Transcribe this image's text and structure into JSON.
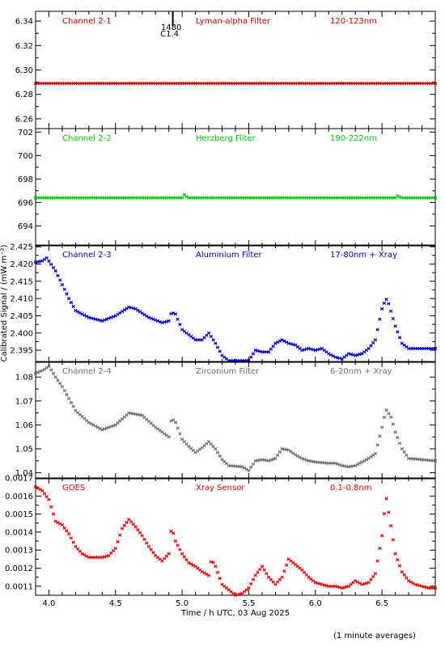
{
  "figure": {
    "xlabel": "Time / h UTC, 03 Aug 2025",
    "ylabel": "Calibrated Signal / (mW m⁻²)",
    "footnote": "(1 minute averages)",
    "xlim": [
      3.9,
      6.9
    ],
    "xticks": [
      "4.0",
      "4.5",
      "5.0",
      "5.5",
      "6.0",
      "6.5"
    ],
    "xtick_values": [
      4.0,
      4.5,
      5.0,
      5.5,
      6.0,
      6.5
    ],
    "marker_line": {
      "x": 4.93,
      "label1": "1480",
      "label2": "C1.4",
      "color": "#000000"
    }
  },
  "chart_data": [
    {
      "type": "scatter",
      "channel": "Channel 2-1",
      "filter": "Lyman-alpha Filter",
      "band": "120-123nm",
      "color": "#cc0000",
      "ylim": [
        6.252,
        6.348
      ],
      "yticks": [
        "6.26",
        "6.28",
        "6.30",
        "6.32",
        "6.34"
      ],
      "ytick_values": [
        6.26,
        6.28,
        6.3,
        6.32,
        6.34
      ],
      "x": [
        3.9,
        6.9
      ],
      "y": [
        6.289,
        6.289
      ],
      "sampling": "1 minute"
    },
    {
      "type": "scatter",
      "channel": "Channel 2-2",
      "filter": "Herzberg Filter",
      "band": "190-222nm",
      "color": "#00cc00",
      "ylim": [
        692.3,
        702.3
      ],
      "yticks": [
        "694",
        "696",
        "698",
        "700",
        "702"
      ],
      "ytick_values": [
        694,
        696,
        698,
        700,
        702
      ],
      "x": [
        3.9,
        5.0,
        5.02,
        5.04,
        6.6,
        6.62,
        6.64,
        6.9
      ],
      "y": [
        696.4,
        696.4,
        696.7,
        696.4,
        696.4,
        696.6,
        696.4,
        696.4
      ],
      "sampling": "1 minute"
    },
    {
      "type": "scatter",
      "channel": "Channel 2-3",
      "filter": "Aluminium Filter",
      "band": "17-80nm + Xray",
      "color": "#0000cc",
      "ylim": [
        2.3915,
        2.4255
      ],
      "yticks": [
        "2.395",
        "2.400",
        "2.405",
        "2.410",
        "2.415",
        "2.420",
        "2.425"
      ],
      "ytick_values": [
        2.395,
        2.4,
        2.405,
        2.41,
        2.415,
        2.42,
        2.425
      ],
      "x": [
        3.9,
        3.96,
        3.98,
        4.05,
        4.1,
        4.15,
        4.2,
        4.3,
        4.4,
        4.5,
        4.6,
        4.65,
        4.75,
        4.85,
        4.9,
        4.92,
        4.95,
        5.0,
        5.05,
        5.1,
        5.15,
        5.2,
        5.25,
        5.3,
        5.35,
        5.45,
        5.5,
        5.55,
        5.6,
        5.65,
        5.7,
        5.75,
        5.8,
        5.85,
        5.9,
        5.95,
        6.0,
        6.05,
        6.1,
        6.15,
        6.2,
        6.25,
        6.3,
        6.35,
        6.4,
        6.45,
        6.5,
        6.53,
        6.55,
        6.6,
        6.65,
        6.7,
        6.8,
        6.9
      ],
      "y": [
        2.4205,
        2.421,
        2.422,
        2.418,
        2.414,
        2.41,
        2.4065,
        2.4045,
        2.4035,
        2.405,
        2.4075,
        2.407,
        2.4045,
        2.403,
        2.4035,
        2.406,
        2.4055,
        2.401,
        2.3995,
        2.398,
        2.398,
        2.4,
        2.397,
        2.3935,
        2.392,
        2.392,
        2.392,
        2.395,
        2.3945,
        2.3945,
        2.397,
        2.398,
        2.397,
        2.3965,
        2.395,
        2.3955,
        2.395,
        2.3955,
        2.394,
        2.393,
        2.3925,
        2.394,
        2.3935,
        2.394,
        2.3955,
        2.398,
        2.407,
        2.41,
        2.4085,
        2.402,
        2.397,
        2.3955,
        2.3955,
        2.3955
      ],
      "sampling": "1 minute"
    },
    {
      "type": "scatter",
      "channel": "Channel 2-4",
      "filter": "Zirconium Filter",
      "band": "6-20nm + Xray",
      "color": "#707070",
      "ylim": [
        1.0375,
        1.0865
      ],
      "yticks": [
        "1.04",
        "1.05",
        "1.06",
        "1.07",
        "1.08"
      ],
      "ytick_values": [
        1.04,
        1.05,
        1.06,
        1.07,
        1.08
      ],
      "x": [
        3.9,
        3.96,
        4.0,
        4.05,
        4.1,
        4.15,
        4.2,
        4.3,
        4.4,
        4.5,
        4.6,
        4.7,
        4.8,
        4.9,
        4.92,
        4.95,
        5.0,
        5.05,
        5.1,
        5.15,
        5.2,
        5.25,
        5.3,
        5.35,
        5.45,
        5.5,
        5.55,
        5.6,
        5.65,
        5.7,
        5.75,
        5.8,
        5.85,
        5.9,
        5.95,
        6.0,
        6.1,
        6.15,
        6.2,
        6.25,
        6.3,
        6.35,
        6.4,
        6.45,
        6.5,
        6.53,
        6.57,
        6.6,
        6.65,
        6.7,
        6.8,
        6.9
      ],
      "y": [
        1.0815,
        1.083,
        1.0845,
        1.08,
        1.076,
        1.071,
        1.066,
        1.061,
        1.058,
        1.06,
        1.065,
        1.064,
        1.059,
        1.055,
        1.063,
        1.061,
        1.054,
        1.051,
        1.0485,
        1.0505,
        1.053,
        1.05,
        1.0455,
        1.043,
        1.0425,
        1.041,
        1.045,
        1.0455,
        1.045,
        1.046,
        1.05,
        1.0495,
        1.0475,
        1.046,
        1.045,
        1.0445,
        1.044,
        1.044,
        1.043,
        1.0425,
        1.043,
        1.0445,
        1.046,
        1.048,
        1.059,
        1.0665,
        1.063,
        1.057,
        1.05,
        1.046,
        1.0455,
        1.045
      ],
      "sampling": "1 minute"
    },
    {
      "type": "scatter",
      "channel": "GOES",
      "filter": "Xray Sensor",
      "band": "0.1-0.8nm",
      "color": "#ee0000",
      "ylim": [
        0.00105,
        0.0017
      ],
      "yticks": [
        "0.0011",
        "0.0012",
        "0.0013",
        "0.0014",
        "0.0015",
        "0.0016",
        "0.0017"
      ],
      "ytick_values": [
        0.0011,
        0.0012,
        0.0013,
        0.0014,
        0.0015,
        0.0016,
        0.0017
      ],
      "x": [
        3.9,
        3.95,
        4.0,
        4.05,
        4.1,
        4.15,
        4.2,
        4.25,
        4.3,
        4.4,
        4.45,
        4.5,
        4.55,
        4.6,
        4.65,
        4.7,
        4.75,
        4.8,
        4.85,
        4.9,
        4.92,
        4.95,
        5.0,
        5.05,
        5.1,
        5.15,
        5.2,
        5.22,
        5.25,
        5.3,
        5.35,
        5.4,
        5.45,
        5.5,
        5.55,
        5.6,
        5.65,
        5.7,
        5.75,
        5.8,
        5.85,
        5.9,
        5.95,
        6.0,
        6.05,
        6.1,
        6.15,
        6.2,
        6.25,
        6.3,
        6.35,
        6.4,
        6.45,
        6.5,
        6.53,
        6.57,
        6.6,
        6.65,
        6.7,
        6.75,
        6.8,
        6.85,
        6.9
      ],
      "y": [
        0.00165,
        0.00163,
        0.00158,
        0.00146,
        0.00144,
        0.00139,
        0.00132,
        0.00128,
        0.00126,
        0.00126,
        0.00127,
        0.00131,
        0.00142,
        0.00147,
        0.00143,
        0.00138,
        0.00132,
        0.00127,
        0.00124,
        0.00128,
        0.00143,
        0.00135,
        0.00128,
        0.00123,
        0.00121,
        0.00118,
        0.00116,
        0.00125,
        0.00121,
        0.00111,
        0.00108,
        0.00105,
        0.00106,
        0.00109,
        0.00116,
        0.00121,
        0.00115,
        0.00111,
        0.00115,
        0.00125,
        0.00122,
        0.00119,
        0.00115,
        0.00112,
        0.00111,
        0.0011,
        0.0011,
        0.00109,
        0.0011,
        0.00113,
        0.00111,
        0.00112,
        0.00117,
        0.00138,
        0.0016,
        0.00142,
        0.00128,
        0.00118,
        0.00113,
        0.00111,
        0.0011,
        0.00109,
        0.00109
      ],
      "sampling": "1 minute"
    }
  ]
}
